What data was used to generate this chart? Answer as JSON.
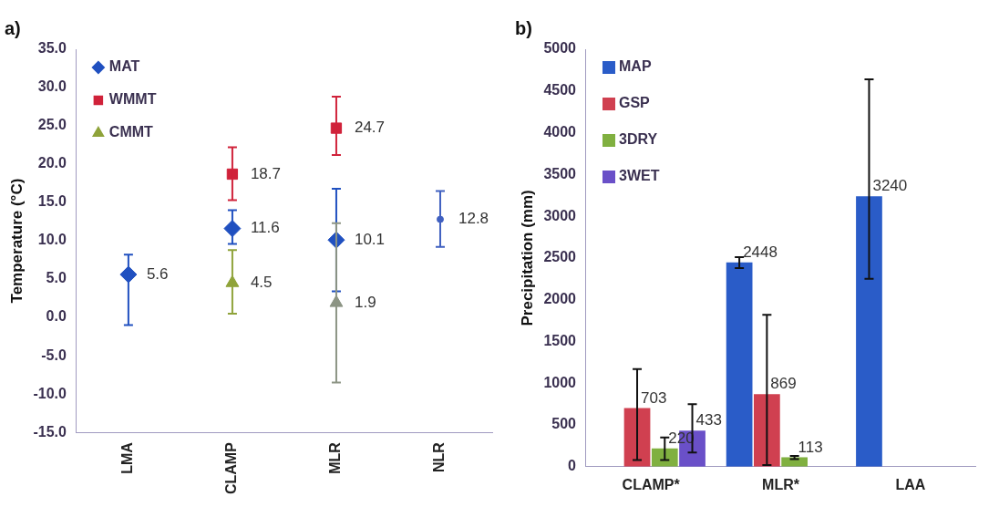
{
  "chart_data": [
    {
      "type": "scatter",
      "title": "a)",
      "ylabel": "Temperature (°C)",
      "categories": [
        "LMA",
        "CLAMP",
        "MLR",
        "NLR"
      ],
      "series": [
        {
          "name": "MAT",
          "color": "#2050c0",
          "marker": "diamond",
          "values": [
            5.6,
            11.6,
            10.1,
            null
          ],
          "errors": [
            [
              -1.0,
              8.2
            ],
            [
              9.6,
              14.0
            ],
            [
              3.4,
              16.8
            ],
            null
          ]
        },
        {
          "name": "WMMT",
          "color": "#d0223a",
          "marker": "square",
          "values": [
            null,
            18.7,
            24.7,
            null
          ],
          "errors": [
            null,
            [
              15.3,
              22.2
            ],
            [
              21.2,
              28.8
            ],
            null
          ]
        },
        {
          "name": "CMMT",
          "color": "#8fa33a",
          "colors": [
            null,
            "#8fa33a",
            "#8c9484",
            null
          ],
          "marker": "triangle",
          "values": [
            null,
            4.5,
            1.9,
            null
          ],
          "errors": [
            null,
            [
              0.5,
              8.8
            ],
            [
              -8.5,
              12.3
            ],
            null
          ]
        },
        {
          "color": "#4060c0",
          "values": [
            null,
            null,
            null,
            12.8
          ],
          "errors": [
            null,
            null,
            null,
            [
              9.2,
              16.5
            ]
          ]
        }
      ],
      "ylim": [
        -15,
        35
      ],
      "yticks": [
        {
          "value": -15,
          "label": "-15.0"
        },
        {
          "value": -10,
          "label": "-10.0"
        },
        {
          "value": -5,
          "label": "-5.0"
        },
        {
          "value": 0,
          "label": "0.0"
        },
        {
          "value": 5,
          "label": "5.0"
        },
        {
          "value": 10,
          "label": "10.0"
        },
        {
          "value": 15,
          "label": "15.0"
        },
        {
          "value": 20,
          "label": "20.0"
        },
        {
          "value": 25,
          "label": "25.0"
        },
        {
          "value": 30,
          "label": "30.0"
        },
        {
          "value": 35,
          "label": "35.0"
        }
      ],
      "grid": false,
      "legend": "top left",
      "data_labels": true
    },
    {
      "type": "bar",
      "title": "b)",
      "ylabel": "Precipitation (mm)",
      "categories": [
        "CLAMP*",
        "MLR*",
        "LAA"
      ],
      "series": [
        {
          "name": "MAP",
          "color": "#2a5cc8",
          "values": [
            null,
            2448,
            3240
          ],
          "errors": [
            null,
            [
              2380,
              2510
            ],
            [
              2250,
              4640
            ]
          ]
        },
        {
          "name": "GSP",
          "color": "#d04050",
          "values": [
            703,
            869,
            null
          ],
          "errors": [
            [
              80,
              1170
            ],
            [
              20,
              1820
            ],
            null
          ]
        },
        {
          "name": "3DRY",
          "color": "#80b040",
          "values": [
            220,
            113,
            null
          ],
          "errors": [
            [
              80,
              350
            ],
            [
              90,
              130
            ],
            null
          ]
        },
        {
          "name": "3WET",
          "color": "#6a50c8",
          "values": [
            433,
            null,
            null
          ],
          "errors": [
            [
              170,
              750
            ],
            null,
            null
          ]
        }
      ],
      "ylim": [
        0,
        5000
      ],
      "yticks": [
        0,
        500,
        1000,
        1500,
        2000,
        2500,
        3000,
        3500,
        4000,
        4500,
        5000
      ],
      "grid": false,
      "legend": "top left",
      "data_labels": true
    }
  ]
}
